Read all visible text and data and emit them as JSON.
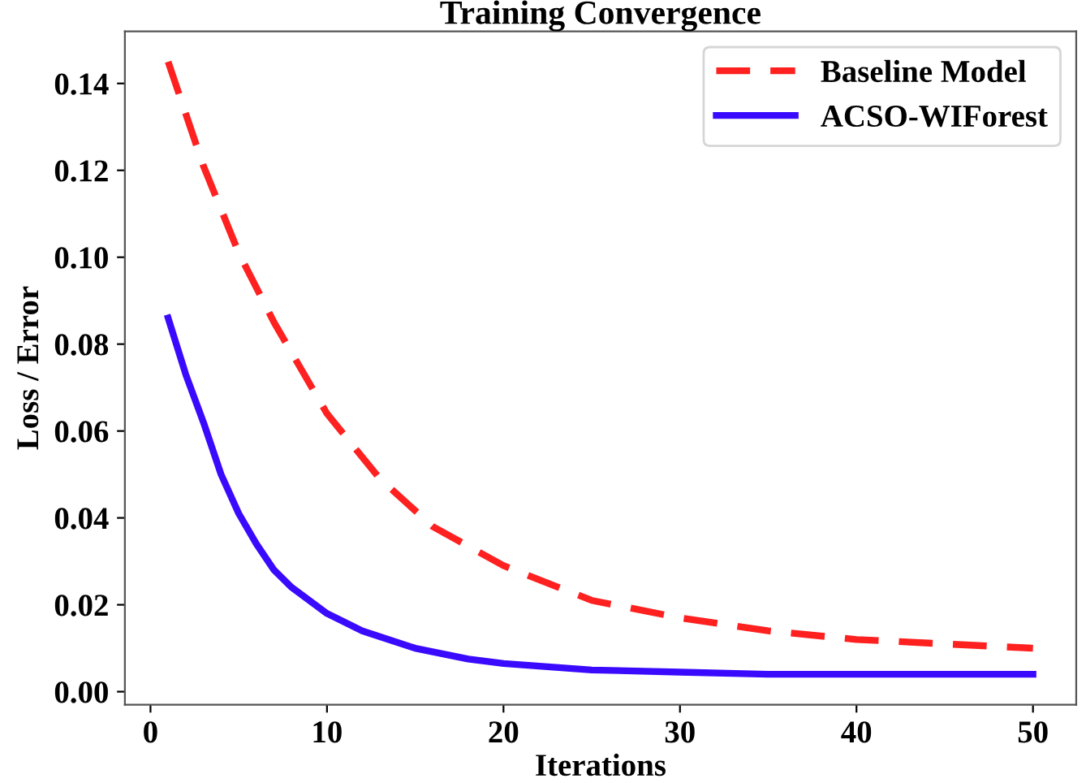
{
  "chart_data": {
    "type": "line",
    "title": "Training Convergence",
    "xlabel": "Iterations",
    "ylabel": "Loss / Error",
    "xlim": [
      -1.45,
      52.45
    ],
    "ylim": [
      -0.003,
      0.152
    ],
    "xticks": [
      0,
      10,
      20,
      30,
      40,
      50
    ],
    "yticks": [
      {
        "value": 0,
        "label": "0.00"
      },
      {
        "value": 0.02,
        "label": "0.02"
      },
      {
        "value": 0.04,
        "label": "0.04"
      },
      {
        "value": 0.06,
        "label": "0.06"
      },
      {
        "value": 0.08,
        "label": "0.08"
      },
      {
        "value": 0.1,
        "label": "0.10"
      },
      {
        "value": 0.12,
        "label": "0.12"
      },
      {
        "value": 0.14,
        "label": "0.14"
      }
    ],
    "grid": false,
    "legend": "top right",
    "series": [
      {
        "name": "Baseline Model",
        "color": "#ff2020",
        "line_style": "dashed",
        "x": [
          1,
          3,
          5,
          7,
          10,
          13,
          16,
          20,
          25,
          30,
          35,
          40,
          45,
          50
        ],
        "values": [
          0.145,
          0.121,
          0.101,
          0.085,
          0.064,
          0.049,
          0.038,
          0.029,
          0.021,
          0.017,
          0.014,
          0.012,
          0.011,
          0.01
        ]
      },
      {
        "name": "ACSO-WIForest",
        "color": "#3a0aff",
        "line_style": "solid",
        "x": [
          1,
          2,
          3,
          4,
          5,
          6,
          7,
          8,
          10,
          12,
          15,
          18,
          20,
          25,
          30,
          35,
          40,
          45,
          50
        ],
        "values": [
          0.086,
          0.073,
          0.062,
          0.05,
          0.041,
          0.034,
          0.028,
          0.024,
          0.018,
          0.014,
          0.01,
          0.0075,
          0.0065,
          0.005,
          0.0045,
          0.004,
          0.004,
          0.004,
          0.004
        ]
      }
    ]
  }
}
